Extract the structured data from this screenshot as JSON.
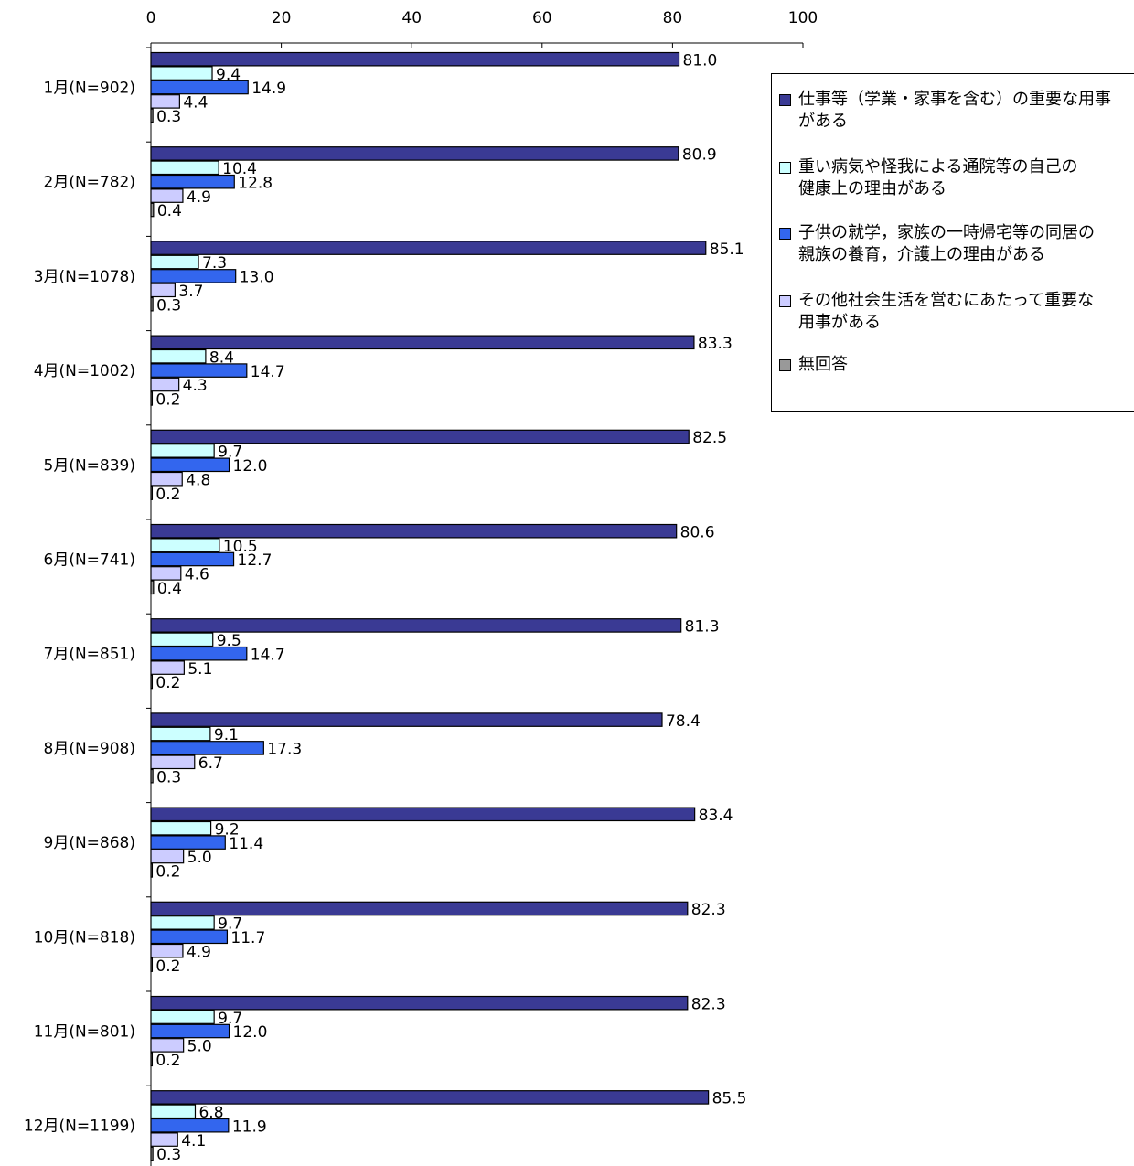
{
  "chart_data": {
    "type": "bar",
    "orientation": "horizontal",
    "title": "",
    "xlabel": "",
    "ylabel": "",
    "xlim": [
      0,
      100
    ],
    "x_ticks": [
      0,
      20,
      40,
      60,
      80,
      100
    ],
    "x_axis_position": "top",
    "grid": false,
    "legend_position": "right",
    "categories": [
      "1月(N=902)",
      "2月(N=782)",
      "3月(N=1078)",
      "4月(N=1002)",
      "5月(N=839)",
      "6月(N=741)",
      "7月(N=851)",
      "8月(N=908)",
      "9月(N=868)",
      "10月(N=818)",
      "11月(N=801)",
      "12月(N=1199)"
    ],
    "series": [
      {
        "name": "仕事等（学業・家事を含む）の重要な用事がある",
        "color": "#3a3a94",
        "values": [
          81.0,
          80.9,
          85.1,
          83.3,
          82.5,
          80.6,
          81.3,
          78.4,
          83.4,
          82.3,
          82.3,
          85.5
        ]
      },
      {
        "name": "重い病気や怪我による通院等の自己の健康上の理由がある",
        "color": "#ccffff",
        "values": [
          9.4,
          10.4,
          7.3,
          8.4,
          9.7,
          10.5,
          9.5,
          9.1,
          9.2,
          9.7,
          9.7,
          6.8
        ]
      },
      {
        "name": "子供の就学，家族の一時帰宅等の同居の親族の養育，介護上の理由がある",
        "color": "#3366ee",
        "values": [
          14.9,
          12.8,
          13.0,
          14.7,
          12.0,
          12.7,
          14.7,
          17.3,
          11.4,
          11.7,
          12.0,
          11.9
        ]
      },
      {
        "name": "その他社会生活を営むにあたって重要な用事がある",
        "color": "#ccccff",
        "values": [
          4.4,
          4.9,
          3.7,
          4.3,
          4.8,
          4.6,
          5.1,
          6.7,
          5.0,
          4.9,
          5.0,
          4.1
        ]
      },
      {
        "name": "無回答",
        "color": "#999999",
        "values": [
          0.3,
          0.4,
          0.3,
          0.2,
          0.2,
          0.4,
          0.2,
          0.3,
          0.2,
          0.2,
          0.2,
          0.3
        ]
      }
    ],
    "value_labels": [
      [
        "81.0",
        "9.4",
        "14.9",
        "4.4",
        "0.3"
      ],
      [
        "80.9",
        "10.4",
        "12.8",
        "4.9",
        "0.4"
      ],
      [
        "85.1",
        "7.3",
        "13.0",
        "3.7",
        "0.3"
      ],
      [
        "83.3",
        "8.4",
        "14.7",
        "4.3",
        "0.2"
      ],
      [
        "82.5",
        "9.7",
        "12.0",
        "4.8",
        "0.2"
      ],
      [
        "80.6",
        "10.5",
        "12.7",
        "4.6",
        "0.4"
      ],
      [
        "81.3",
        "9.5",
        "14.7",
        "5.1",
        "0.2"
      ],
      [
        "78.4",
        "9.1",
        "17.3",
        "6.7",
        "0.3"
      ],
      [
        "83.4",
        "9.2",
        "11.4",
        "5.0",
        "0.2"
      ],
      [
        "82.3",
        "9.7",
        "11.7",
        "4.9",
        "0.2"
      ],
      [
        "82.3",
        "9.7",
        "12.0",
        "5.0",
        "0.2"
      ],
      [
        "85.5",
        "6.8",
        "11.9",
        "4.1",
        "0.3"
      ]
    ]
  },
  "legend": {
    "items": [
      {
        "lines": [
          "仕事等（学業・家事を含む）の重要な用事",
          "がある"
        ],
        "color": "#3a3a94"
      },
      {
        "lines": [
          "重い病気や怪我による通院等の自己の",
          "健康上の理由がある"
        ],
        "color": "#ccffff"
      },
      {
        "lines": [
          "子供の就学，家族の一時帰宅等の同居の",
          "親族の養育，介護上の理由がある"
        ],
        "color": "#3366ee"
      },
      {
        "lines": [
          "その他社会生活を営むにあたって重要な",
          "用事がある"
        ],
        "color": "#ccccff"
      },
      {
        "lines": [
          "無回答"
        ],
        "color": "#999999"
      }
    ]
  }
}
